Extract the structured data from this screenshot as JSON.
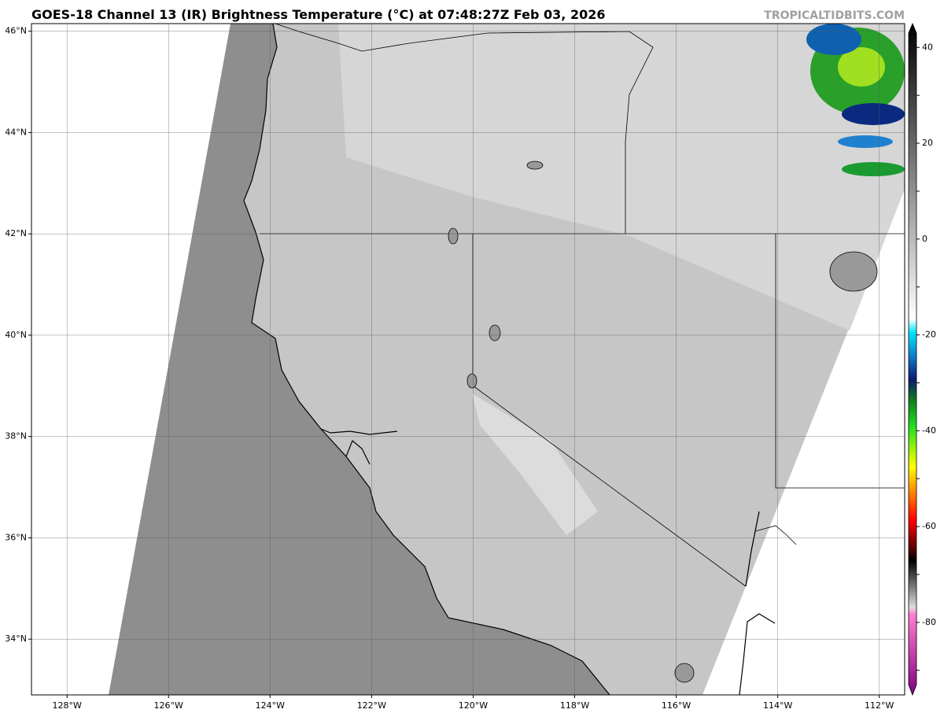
{
  "map": {
    "title": "GOES-18 Channel 13 (IR) Brightness Temperature (°C) at 07:48:27Z Feb 03, 2026",
    "watermark": "TROPICALTIDBITS.COM",
    "xlim": [
      -128.7,
      -111.5
    ],
    "ylim": [
      32.9,
      46.15
    ],
    "xticks": [
      {
        "value": -128,
        "label": "128°W"
      },
      {
        "value": -126,
        "label": "126°W"
      },
      {
        "value": -124,
        "label": "124°W"
      },
      {
        "value": -122,
        "label": "122°W"
      },
      {
        "value": -120,
        "label": "120°W"
      },
      {
        "value": -118,
        "label": "118°W"
      },
      {
        "value": -116,
        "label": "116°W"
      },
      {
        "value": -114,
        "label": "114°W"
      },
      {
        "value": -112,
        "label": "112°W"
      }
    ],
    "yticks": [
      {
        "value": 34,
        "label": "34°N"
      },
      {
        "value": 36,
        "label": "36°N"
      },
      {
        "value": 38,
        "label": "38°N"
      },
      {
        "value": 40,
        "label": "40°N"
      },
      {
        "value": 42,
        "label": "42°N"
      },
      {
        "value": 44,
        "label": "44°N"
      },
      {
        "value": 46,
        "label": "46°N"
      }
    ],
    "grid": true
  },
  "colorbar": {
    "lim": [
      -93,
      43
    ],
    "ticks": [
      40,
      30,
      20,
      10,
      0,
      -10,
      -20,
      -30,
      -40,
      -50,
      -60,
      -70,
      -80,
      -90
    ]
  }
}
